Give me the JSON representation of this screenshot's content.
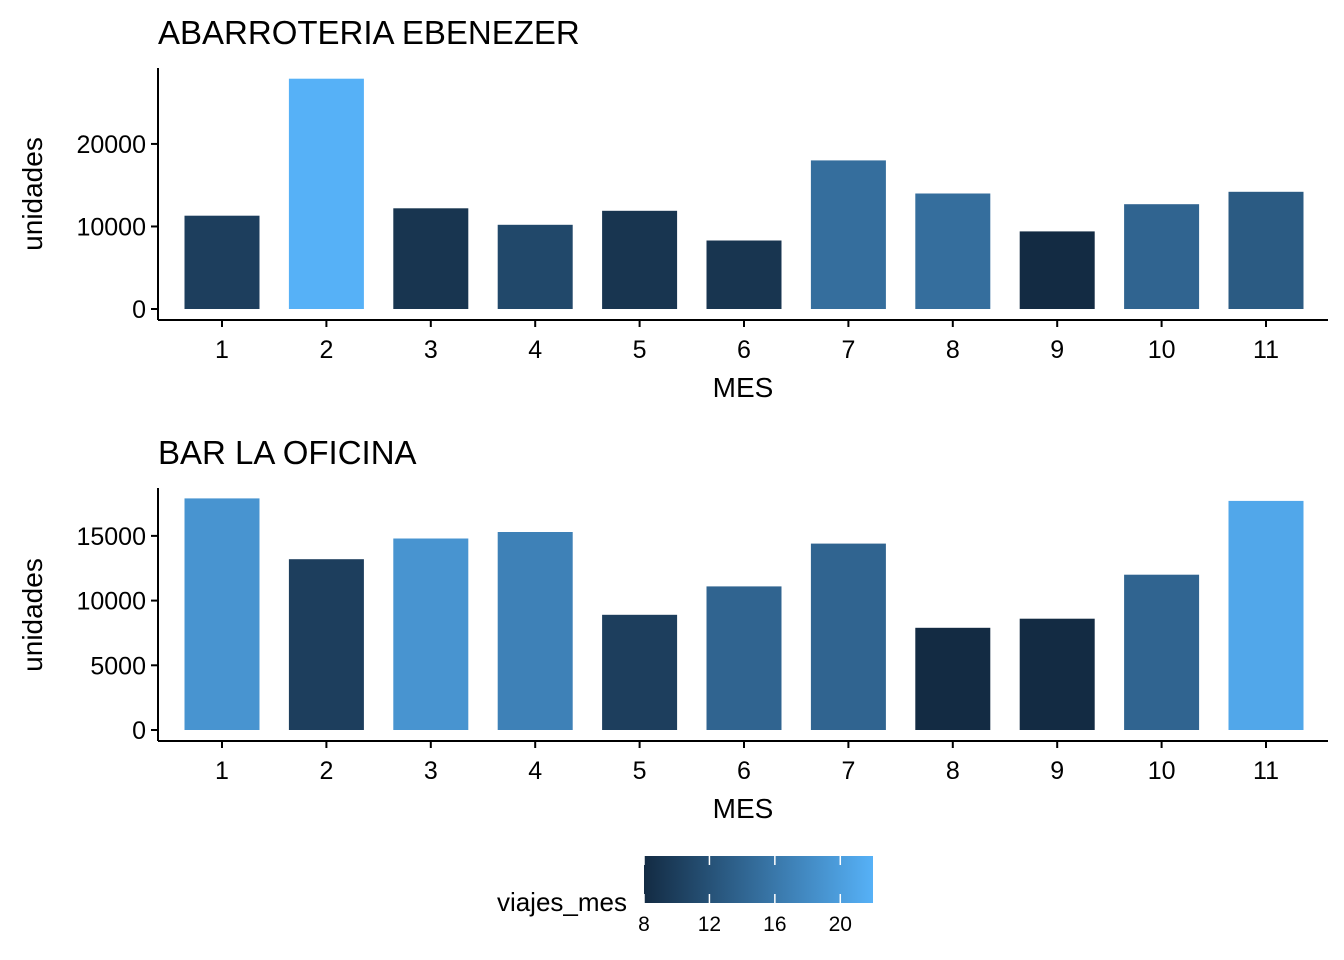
{
  "chart_data": [
    {
      "type": "bar",
      "title": "ABARROTERIA EBENEZER",
      "xlabel": "MES",
      "ylabel": "unidades",
      "categories": [
        "1",
        "2",
        "3",
        "4",
        "5",
        "6",
        "7",
        "8",
        "9",
        "10",
        "11"
      ],
      "values": [
        11300,
        27900,
        12200,
        10200,
        11900,
        8300,
        18000,
        14000,
        9400,
        12700,
        14200
      ],
      "color_values": [
        10,
        22,
        9,
        11,
        9,
        9,
        15,
        15,
        8,
        14,
        13
      ],
      "yticks": [
        0,
        10000,
        20000
      ],
      "ylim": [
        0,
        29200
      ]
    },
    {
      "type": "bar",
      "title": "BAR LA OFICINA",
      "xlabel": "MES",
      "ylabel": "unidades",
      "categories": [
        "1",
        "2",
        "3",
        "4",
        "5",
        "6",
        "7",
        "8",
        "9",
        "10",
        "11"
      ],
      "values": [
        17900,
        13200,
        14800,
        15300,
        8900,
        11100,
        14400,
        7900,
        8600,
        12000,
        17700
      ],
      "color_values": [
        19,
        10,
        19,
        17,
        10,
        14,
        14,
        8,
        8,
        14,
        21
      ],
      "yticks": [
        0,
        5000,
        10000,
        15000
      ],
      "ylim": [
        0,
        18700
      ]
    }
  ],
  "legend": {
    "title": "viajes_mes",
    "ticks": [
      8,
      12,
      16,
      20
    ],
    "range": [
      8,
      22
    ],
    "color_low": "#132B43",
    "color_high": "#56B1F7"
  }
}
